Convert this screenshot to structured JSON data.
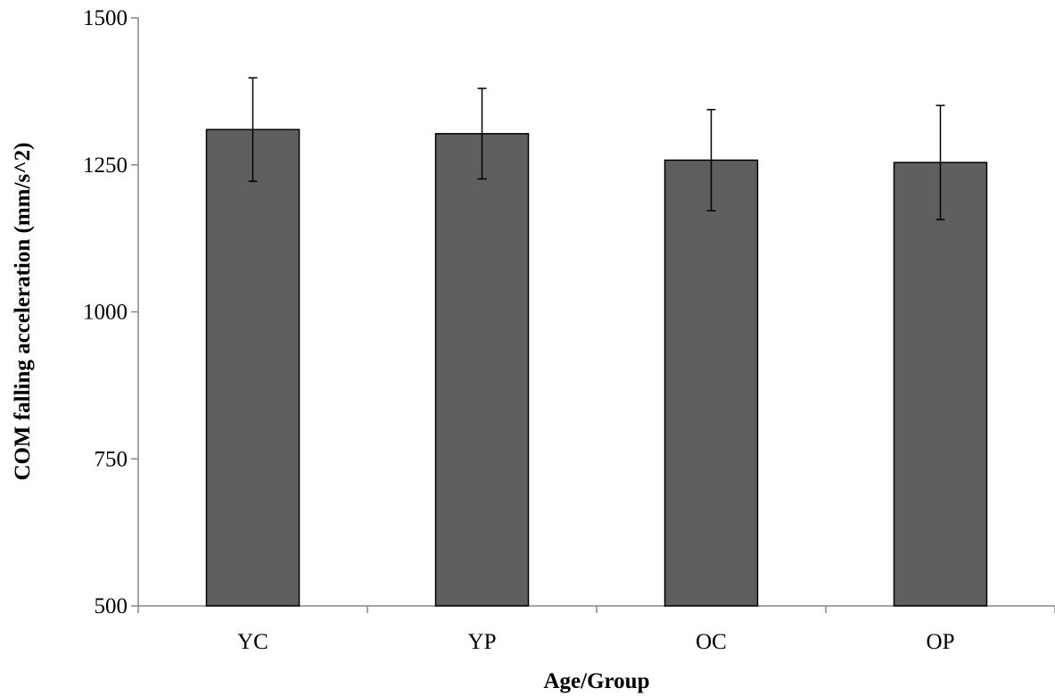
{
  "chart_data": {
    "type": "bar",
    "title": "",
    "xlabel": "Age/Group",
    "ylabel": "COM falling acceleration (mm/s^2)",
    "categories": [
      "YC",
      "YP",
      "OC",
      "OP"
    ],
    "values": [
      1310,
      1303,
      1258,
      1254
    ],
    "error": [
      88,
      77,
      86,
      97
    ],
    "ylim": [
      500,
      1500
    ],
    "yticks": [
      500,
      750,
      1000,
      1250,
      1500
    ],
    "ytick_labels": [
      "500",
      "750",
      "1000",
      "1250",
      "1500"
    ],
    "grid": false,
    "legend": "none",
    "colors": {
      "bar_fill": "#5f5f5f",
      "bar_stroke": "#000000",
      "axis": "#868686",
      "error_bar": "#000000"
    }
  }
}
